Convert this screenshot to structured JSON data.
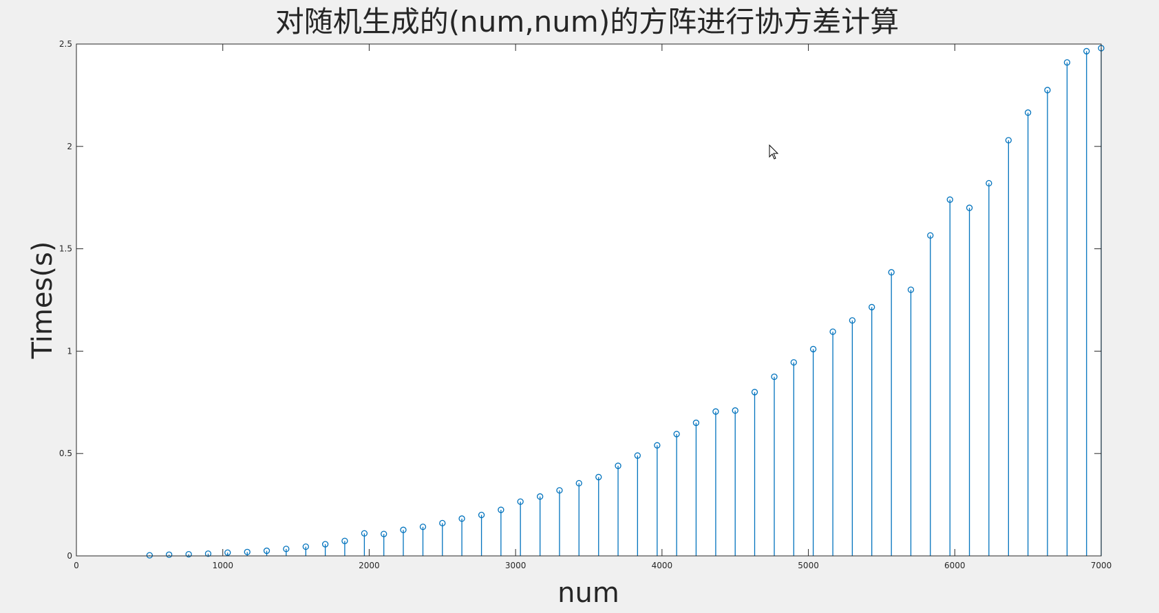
{
  "chart_data": {
    "type": "stem",
    "title": "对随机生成的(num,num)的方阵进行协方差计算",
    "xlabel": "num",
    "ylabel": "Times(s)",
    "xlim": [
      0,
      7000
    ],
    "ylim": [
      0,
      2.5
    ],
    "xticks": [
      "0",
      "1000",
      "2000",
      "3000",
      "4000",
      "5000",
      "6000",
      "7000"
    ],
    "yticks": [
      "0",
      "0.5",
      "1",
      "1.5",
      "2",
      "2.5"
    ],
    "grid": false,
    "color": "#0072BD",
    "x": [
      500,
      633,
      767,
      900,
      1033,
      1167,
      1300,
      1433,
      1567,
      1700,
      1833,
      1967,
      2100,
      2233,
      2367,
      2500,
      2633,
      2767,
      2900,
      3033,
      3167,
      3300,
      3433,
      3567,
      3700,
      3833,
      3967,
      4100,
      4233,
      4367,
      4500,
      4633,
      4767,
      4900,
      5033,
      5167,
      5300,
      5433,
      5567,
      5700,
      5833,
      5967,
      6100,
      6233,
      6367,
      6500,
      6633,
      6767,
      6900,
      7000
    ],
    "y": [
      0.003,
      0.006,
      0.008,
      0.011,
      0.016,
      0.019,
      0.025,
      0.034,
      0.045,
      0.057,
      0.073,
      0.11,
      0.107,
      0.127,
      0.142,
      0.16,
      0.182,
      0.2,
      0.225,
      0.265,
      0.29,
      0.32,
      0.355,
      0.385,
      0.44,
      0.49,
      0.54,
      0.595,
      0.65,
      0.705,
      0.71,
      0.8,
      0.875,
      0.945,
      1.01,
      1.095,
      1.15,
      1.215,
      1.385,
      1.3,
      1.565,
      1.74,
      1.7,
      1.82,
      2.03,
      2.165,
      2.275,
      2.41,
      2.465,
      2.48
    ]
  }
}
